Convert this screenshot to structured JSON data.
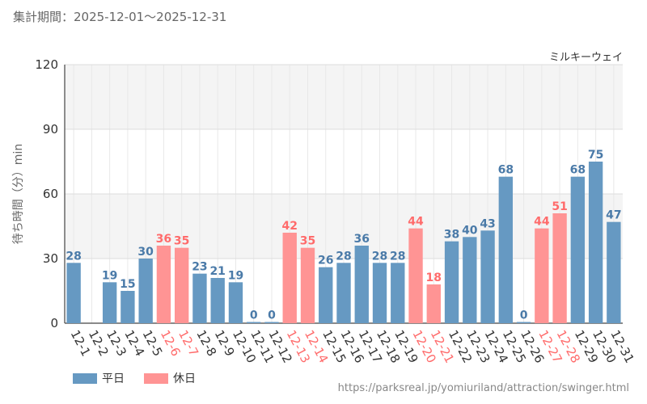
{
  "header": {
    "period": "集計期間：2025-12-01～2025-12-31"
  },
  "footer": {
    "url": "https://parksreal.jp/yomiuriland/attraction/swinger.html"
  },
  "colors": {
    "weekday": "#6699c2",
    "holiday": "#ff9494",
    "weekday_label": "#4a7aa8",
    "holiday_label": "#ff6b6b"
  },
  "chart_data": {
    "type": "bar",
    "title": "ミルキーウェイ",
    "ylabel": "待ち時間（分）min",
    "xlabel": "",
    "ylim": [
      0,
      120
    ],
    "yticks": [
      0,
      30,
      60,
      90,
      120
    ],
    "categories": [
      "12-1",
      "12-2",
      "12-3",
      "12-4",
      "12-5",
      "12-6",
      "12-7",
      "12-8",
      "12-9",
      "12-10",
      "12-11",
      "12-12",
      "12-13",
      "12-14",
      "12-15",
      "12-16",
      "12-17",
      "12-18",
      "12-19",
      "12-20",
      "12-21",
      "12-22",
      "12-23",
      "12-24",
      "12-25",
      "12-26",
      "12-27",
      "12-28",
      "12-29",
      "12-30",
      "12-31"
    ],
    "values": [
      28,
      null,
      19,
      15,
      30,
      36,
      35,
      23,
      21,
      19,
      0,
      0,
      42,
      35,
      26,
      28,
      36,
      28,
      28,
      44,
      18,
      38,
      40,
      43,
      68,
      0,
      44,
      51,
      68,
      75,
      47
    ],
    "day_type": [
      "weekday",
      "weekday",
      "weekday",
      "weekday",
      "weekday",
      "holiday",
      "holiday",
      "weekday",
      "weekday",
      "weekday",
      "weekday",
      "weekday",
      "holiday",
      "holiday",
      "weekday",
      "weekday",
      "weekday",
      "weekday",
      "weekday",
      "holiday",
      "holiday",
      "weekday",
      "weekday",
      "weekday",
      "weekday",
      "weekday",
      "holiday",
      "holiday",
      "weekday",
      "weekday",
      "weekday"
    ],
    "legend": [
      {
        "key": "weekday",
        "label": "平日"
      },
      {
        "key": "holiday",
        "label": "休日"
      }
    ]
  }
}
